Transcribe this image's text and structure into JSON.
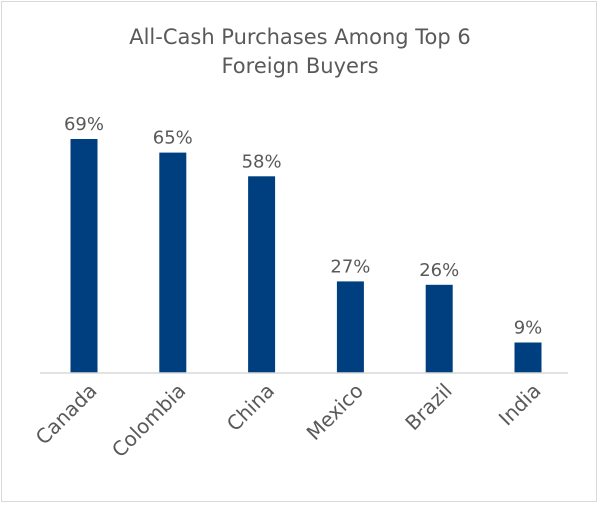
{
  "chart_data": {
    "type": "bar",
    "title_lines": [
      "All-Cash Purchases Among Top 6",
      "Foreign Buyers"
    ],
    "categories": [
      "Canada",
      "Colombia",
      "China",
      "Mexico",
      "Brazil",
      "India"
    ],
    "values": [
      69,
      65,
      58,
      27,
      26,
      9
    ],
    "data_labels": [
      "69%",
      "65%",
      "58%",
      "27%",
      "26%",
      "9%"
    ],
    "xlabel": "",
    "ylabel": "",
    "ylim": [
      0,
      69
    ],
    "grid": false,
    "legend": "none",
    "bar_color": "#003f7f"
  }
}
